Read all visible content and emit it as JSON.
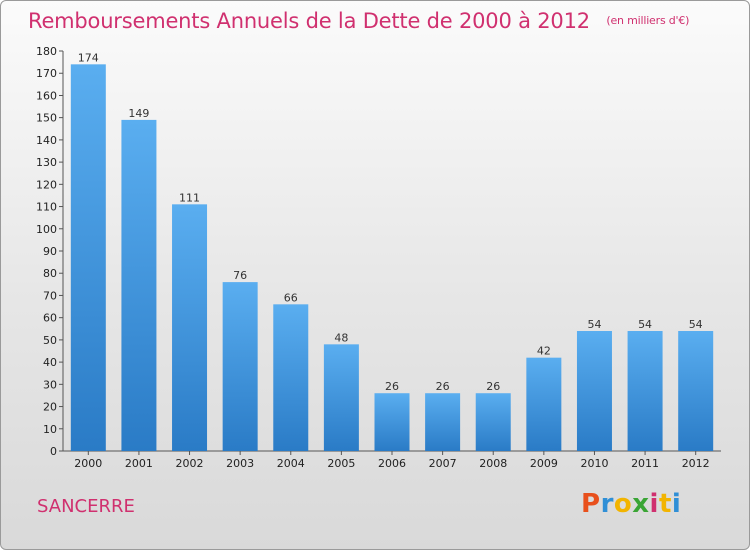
{
  "header": {
    "title": "Remboursements Annuels de la Dette de 2000 à 2012",
    "subtitle": "(en milliers d'€)"
  },
  "footer": {
    "town": "SANCERRE",
    "logo_text": "Proxiti",
    "logo_colors": [
      "#e8501c",
      "#2f8fd6",
      "#f2b400",
      "#3aa535",
      "#d0306f",
      "#f2b400",
      "#2f8fd6"
    ]
  },
  "colors": {
    "bar_light": "#5aaef0",
    "bar_dark": "#2a7bc6",
    "text_accent": "#d0306f"
  },
  "chart_data": {
    "type": "bar",
    "title": "Remboursements Annuels de la Dette de 2000 à 2012",
    "subtitle": "(en milliers d'€)",
    "categories": [
      "2000",
      "2001",
      "2002",
      "2003",
      "2004",
      "2005",
      "2006",
      "2007",
      "2008",
      "2009",
      "2010",
      "2011",
      "2012"
    ],
    "values": [
      174,
      149,
      111,
      76,
      66,
      48,
      26,
      26,
      26,
      42,
      54,
      54,
      54
    ],
    "ylim": [
      0,
      180
    ],
    "yticks": [
      0,
      10,
      20,
      30,
      40,
      50,
      60,
      70,
      80,
      90,
      100,
      110,
      120,
      130,
      140,
      150,
      160,
      170,
      180
    ],
    "grid": false,
    "data_labels": true
  }
}
